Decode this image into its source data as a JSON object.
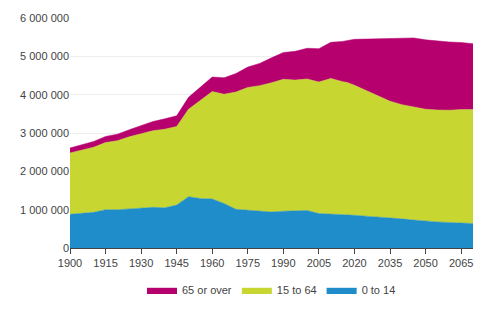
{
  "chart_data": {
    "type": "area",
    "stacked": true,
    "x": [
      1900,
      1905,
      1910,
      1915,
      1920,
      1925,
      1930,
      1935,
      1940,
      1945,
      1950,
      1955,
      1960,
      1965,
      1970,
      1975,
      1980,
      1985,
      1990,
      1995,
      2000,
      2005,
      2010,
      2015,
      2017,
      2020,
      2025,
      2030,
      2035,
      2040,
      2045,
      2050,
      2055,
      2060,
      2065,
      2070
    ],
    "series": [
      {
        "name": "0 to 14",
        "color": "#1f8dc9",
        "values": [
          880000,
          910000,
          930000,
          1000000,
          1000000,
          1020000,
          1040000,
          1060000,
          1050000,
          1120000,
          1340000,
          1290000,
          1280000,
          1160000,
          1010000,
          990000,
          965000,
          940000,
          960000,
          970000,
          980000,
          900000,
          885000,
          880000,
          875000,
          855000,
          830000,
          810000,
          790000,
          760000,
          730000,
          700000,
          680000,
          665000,
          650000,
          640000
        ]
      },
      {
        "name": "15 to 64",
        "color": "#c8d632",
        "values": [
          1600000,
          1650000,
          1700000,
          1750000,
          1800000,
          1880000,
          1950000,
          2000000,
          2050000,
          2050000,
          2280000,
          2560000,
          2800000,
          2850000,
          3060000,
          3200000,
          3270000,
          3370000,
          3440000,
          3410000,
          3430000,
          3430000,
          3540000,
          3460000,
          3440000,
          3390000,
          3270000,
          3160000,
          3040000,
          2980000,
          2950000,
          2920000,
          2920000,
          2930000,
          2960000,
          2970000
        ]
      },
      {
        "name": "65 or over",
        "color": "#b5006e",
        "values": [
          130000,
          140000,
          150000,
          160000,
          170000,
          185000,
          210000,
          240000,
          270000,
          280000,
          310000,
          345000,
          380000,
          430000,
          480000,
          530000,
          580000,
          650000,
          700000,
          750000,
          800000,
          870000,
          940000,
          1050000,
          1100000,
          1200000,
          1350000,
          1490000,
          1640000,
          1740000,
          1800000,
          1810000,
          1800000,
          1780000,
          1750000,
          1720000
        ]
      }
    ],
    "xlim": [
      1900,
      2070
    ],
    "xticks": [
      1900,
      1915,
      1930,
      1945,
      1960,
      1975,
      1990,
      2005,
      2020,
      2035,
      2050,
      2065
    ],
    "ylim": [
      0,
      6000000
    ],
    "yticks": [
      0,
      {
        "value": 1000000,
        "label": "1 000 000"
      },
      {
        "value": 2000000,
        "label": "2 000 000"
      },
      {
        "value": 3000000,
        "label": "3 000 000"
      },
      {
        "value": 4000000,
        "label": "4 000 000"
      },
      {
        "value": 5000000,
        "label": "5 000 000"
      },
      {
        "value": 6000000,
        "label": "6 000 000"
      }
    ],
    "grid": true,
    "legend": "bottom"
  }
}
